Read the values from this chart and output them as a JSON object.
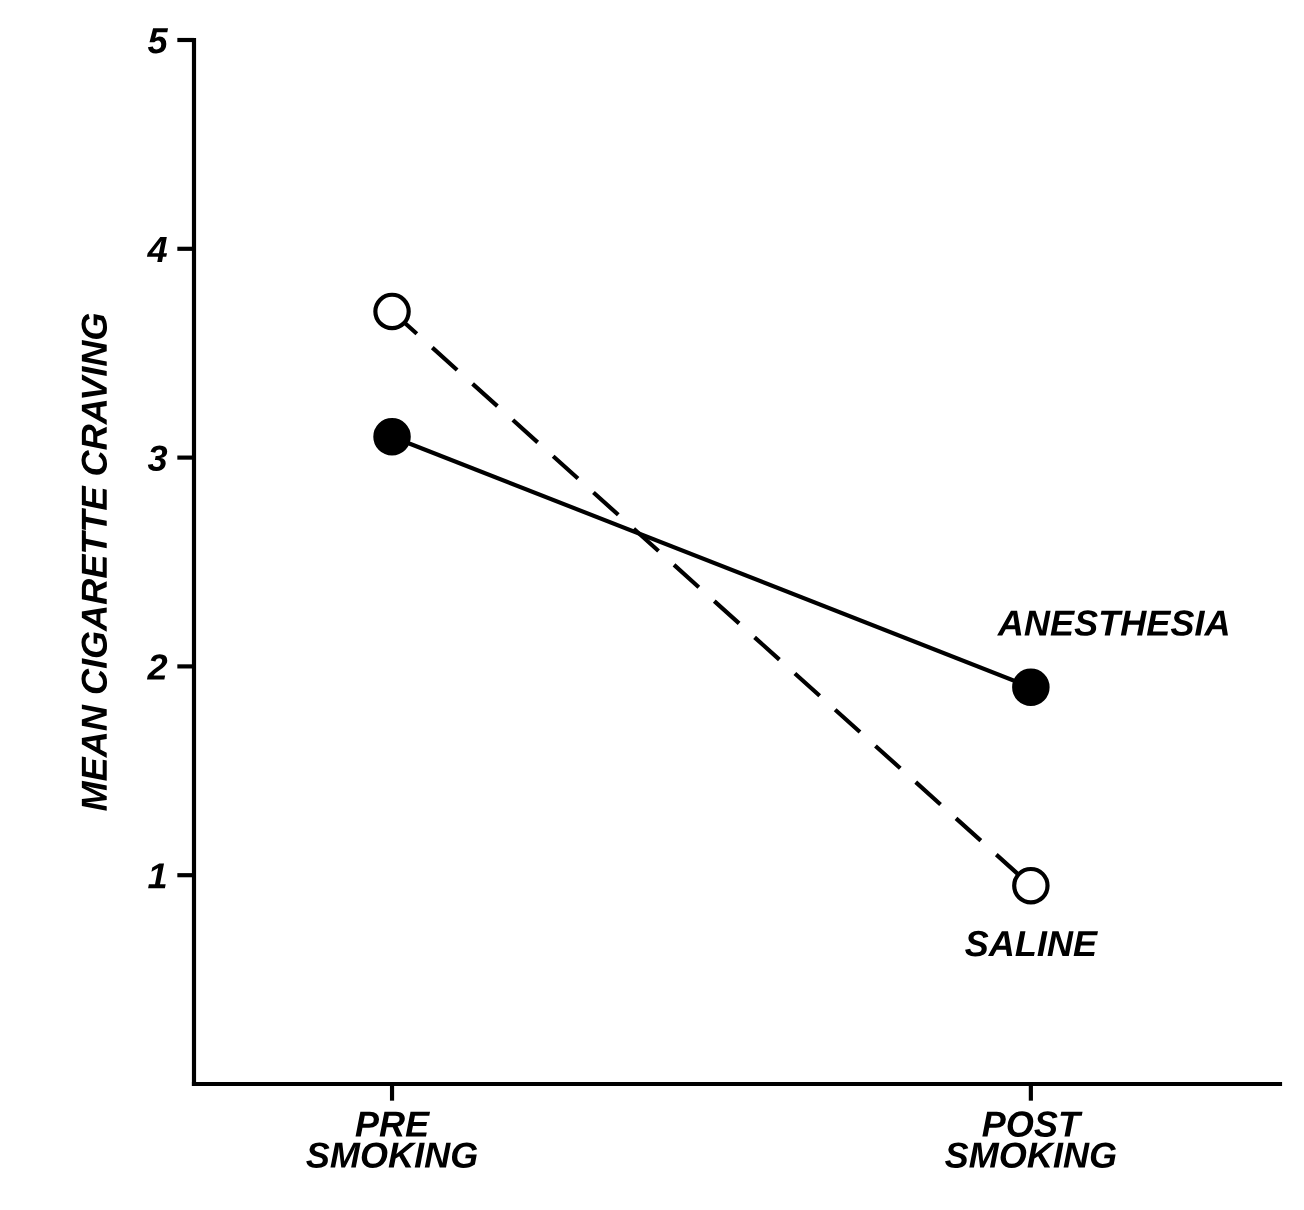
{
  "chart_data": {
    "type": "line",
    "ylabel": "MEAN CIGARETTE CRAVING",
    "categories": [
      "PRE\nSMOKING",
      "POST\nSMOKING"
    ],
    "series": [
      {
        "name": "ANESTHESIA",
        "color": "#000000",
        "values": [
          3.1,
          1.9
        ],
        "line_style": "solid"
      },
      {
        "name": "SALINE",
        "color": "#000000",
        "values": [
          3.7,
          0.95
        ],
        "line_style": "dashed"
      }
    ],
    "ylim": [
      0,
      5
    ],
    "yticks": [
      1,
      2,
      3,
      4,
      5
    ],
    "marker": "circle",
    "grid": false,
    "legend": false
  }
}
